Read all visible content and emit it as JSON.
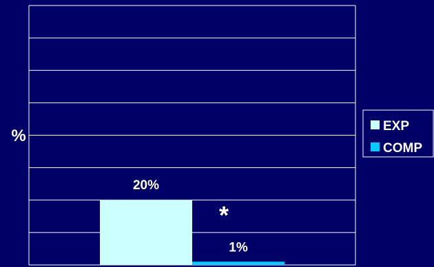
{
  "chart_data": {
    "type": "bar",
    "categories": [
      ""
    ],
    "series": [
      {
        "name": "EXP",
        "values": [
          20
        ],
        "label": "20%",
        "color": "#ccffff"
      },
      {
        "name": "COMP",
        "values": [
          1
        ],
        "label": "1%",
        "color": "#00ccff"
      }
    ],
    "title": "",
    "xlabel": "",
    "ylabel": "%",
    "ylim": [
      0,
      80
    ],
    "y_tick_step": 10,
    "grid": true,
    "legend": "right",
    "annotation": "*",
    "colors": {
      "background": "#000066",
      "gridlines": "#ffffff",
      "text": "#ffffff"
    }
  }
}
